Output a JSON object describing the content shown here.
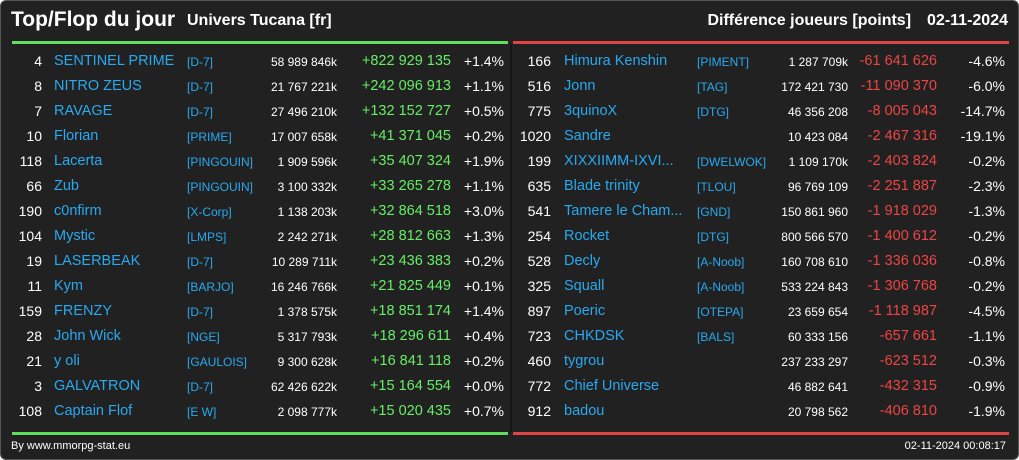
{
  "header": {
    "title": "Top/Flop du jour",
    "subtitle": "Univers Tucana [fr]",
    "metric": "Différence joueurs [points]",
    "date": "02-11-2024"
  },
  "top": [
    {
      "rank": "4",
      "name": "SENTINEL PRIME",
      "alliance": "[D-7]",
      "score": "58 989 846k",
      "diff": "+822 929 135",
      "pct": "+1.4%"
    },
    {
      "rank": "8",
      "name": "NITRO ZEUS",
      "alliance": "[D-7]",
      "score": "21 767 221k",
      "diff": "+242 096 913",
      "pct": "+1.1%"
    },
    {
      "rank": "7",
      "name": "RAVAGE",
      "alliance": "[D-7]",
      "score": "27 496 210k",
      "diff": "+132 152 727",
      "pct": "+0.5%"
    },
    {
      "rank": "10",
      "name": "Florian",
      "alliance": "[PRIME]",
      "score": "17 007 658k",
      "diff": "+41 371 045",
      "pct": "+0.2%"
    },
    {
      "rank": "118",
      "name": "Lacerta",
      "alliance": "[PINGOUIN]",
      "score": "1 909 596k",
      "diff": "+35 407 324",
      "pct": "+1.9%"
    },
    {
      "rank": "66",
      "name": "Zub",
      "alliance": "[PINGOUIN]",
      "score": "3 100 332k",
      "diff": "+33 265 278",
      "pct": "+1.1%"
    },
    {
      "rank": "190",
      "name": "c0nfirm",
      "alliance": "[X-Corp]",
      "score": "1 138 203k",
      "diff": "+32 864 518",
      "pct": "+3.0%"
    },
    {
      "rank": "104",
      "name": "Mystic",
      "alliance": "[LMPS]",
      "score": "2 242 271k",
      "diff": "+28 812 663",
      "pct": "+1.3%"
    },
    {
      "rank": "19",
      "name": "LASERBEAK",
      "alliance": "[D-7]",
      "score": "10 289 711k",
      "diff": "+23 436 383",
      "pct": "+0.2%"
    },
    {
      "rank": "11",
      "name": "Kym",
      "alliance": "[BARJO]",
      "score": "16 246 766k",
      "diff": "+21 825 449",
      "pct": "+0.1%"
    },
    {
      "rank": "159",
      "name": "FRENZY",
      "alliance": "[D-7]",
      "score": "1 378 575k",
      "diff": "+18 851 174",
      "pct": "+1.4%"
    },
    {
      "rank": "28",
      "name": "John Wick",
      "alliance": "[NGE]",
      "score": "5 317 793k",
      "diff": "+18 296 611",
      "pct": "+0.4%"
    },
    {
      "rank": "21",
      "name": "y oli",
      "alliance": "[GAULOIS]",
      "score": "9 300 628k",
      "diff": "+16 841 118",
      "pct": "+0.2%"
    },
    {
      "rank": "3",
      "name": "GALVATRON",
      "alliance": "[D-7]",
      "score": "62 426 622k",
      "diff": "+15 164 554",
      "pct": "+0.0%"
    },
    {
      "rank": "108",
      "name": "Captain Flof",
      "alliance": "[E W]",
      "score": "2 098 777k",
      "diff": "+15 020 435",
      "pct": "+0.7%"
    }
  ],
  "flop": [
    {
      "rank": "166",
      "name": "Himura Kenshin",
      "alliance": "[PIMENT]",
      "score": "1 287 709k",
      "diff": "-61 641 626",
      "pct": "-4.6%"
    },
    {
      "rank": "516",
      "name": "Jonn",
      "alliance": "[TAG]",
      "score": "172 421 730",
      "diff": "-11 090 370",
      "pct": "-6.0%"
    },
    {
      "rank": "775",
      "name": "3quinoX",
      "alliance": "[DTG]",
      "score": "46 356 208",
      "diff": "-8 005 043",
      "pct": "-14.7%"
    },
    {
      "rank": "1020",
      "name": "Sandre",
      "alliance": "",
      "score": "10 423 084",
      "diff": "-2 467 316",
      "pct": "-19.1%"
    },
    {
      "rank": "199",
      "name": "XIXXIIMM-IXVI...",
      "alliance": "[DWELWOK]",
      "score": "1 109 170k",
      "diff": "-2 403 824",
      "pct": "-0.2%"
    },
    {
      "rank": "635",
      "name": "Blade trinity",
      "alliance": "[TLOU]",
      "score": "96 769 109",
      "diff": "-2 251 887",
      "pct": "-2.3%"
    },
    {
      "rank": "541",
      "name": "Tamere le Cham...",
      "alliance": "[GND]",
      "score": "150 861 960",
      "diff": "-1 918 029",
      "pct": "-1.3%"
    },
    {
      "rank": "254",
      "name": "Rocket",
      "alliance": "[DTG]",
      "score": "800 566 570",
      "diff": "-1 400 612",
      "pct": "-0.2%"
    },
    {
      "rank": "528",
      "name": "Decly",
      "alliance": "[A-Noob]",
      "score": "160 708 610",
      "diff": "-1 336 036",
      "pct": "-0.8%"
    },
    {
      "rank": "325",
      "name": "Squall",
      "alliance": "[A-Noob]",
      "score": "533 224 843",
      "diff": "-1 306 768",
      "pct": "-0.2%"
    },
    {
      "rank": "897",
      "name": "Poeric",
      "alliance": "[OTEPA]",
      "score": "23 659 654",
      "diff": "-1 118 987",
      "pct": "-4.5%"
    },
    {
      "rank": "723",
      "name": "CHKDSK",
      "alliance": "[BALS]",
      "score": "60 333 156",
      "diff": "-657 661",
      "pct": "-1.1%"
    },
    {
      "rank": "460",
      "name": "tygrou",
      "alliance": "",
      "score": "237 233 297",
      "diff": "-623 512",
      "pct": "-0.3%"
    },
    {
      "rank": "772",
      "name": "Chief Universe",
      "alliance": "",
      "score": "46 882 641",
      "diff": "-432 315",
      "pct": "-0.9%"
    },
    {
      "rank": "912",
      "name": "badou",
      "alliance": "",
      "score": "20 798 562",
      "diff": "-406 810",
      "pct": "-1.9%"
    }
  ],
  "footer": {
    "credit": "By www.mmorpg-stat.eu",
    "timestamp": "02-11-2024 00:08:17"
  },
  "colors": {
    "background": "#212121",
    "link": "#29a9f0",
    "positive": "#66ee66",
    "negative": "#ee4444",
    "top_bar": "#5ee05e",
    "flop_bar": "#e04444"
  }
}
